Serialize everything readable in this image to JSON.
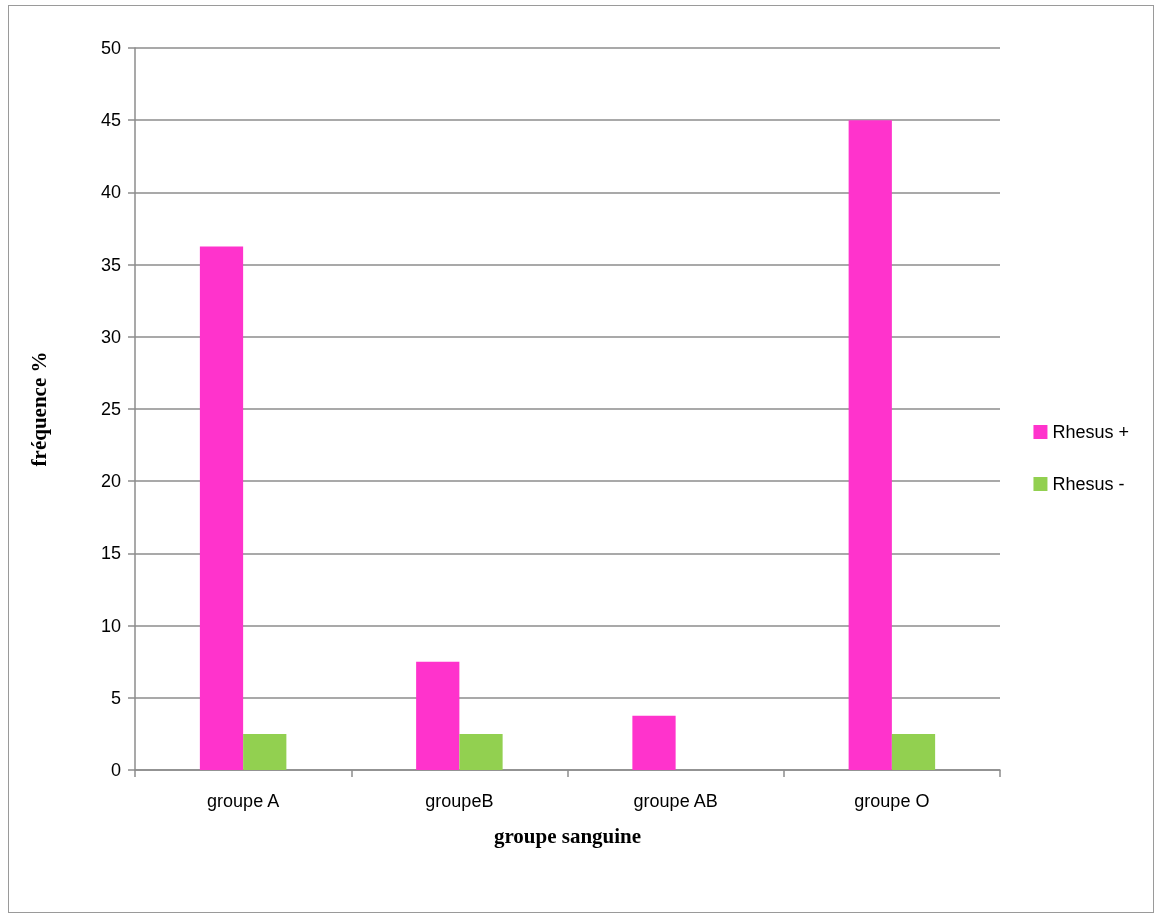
{
  "chart_data": {
    "type": "bar",
    "xlabel": "groupe sanguine",
    "ylabel": "fréquence %",
    "categories": [
      "groupe A",
      "groupeB",
      "groupe AB",
      "groupe O"
    ],
    "series": [
      {
        "name": "Rhesus +",
        "color": "#ff33cc",
        "values": [
          36.25,
          7.5,
          3.75,
          45
        ]
      },
      {
        "name": "Rhesus -",
        "color": "#92d050",
        "values": [
          2.5,
          2.5,
          0,
          2.5
        ]
      }
    ],
    "ylim": [
      0,
      50
    ],
    "yticks": [
      0,
      5,
      10,
      15,
      20,
      25,
      30,
      35,
      40,
      45,
      50
    ],
    "grid": "y",
    "legend": "right"
  }
}
